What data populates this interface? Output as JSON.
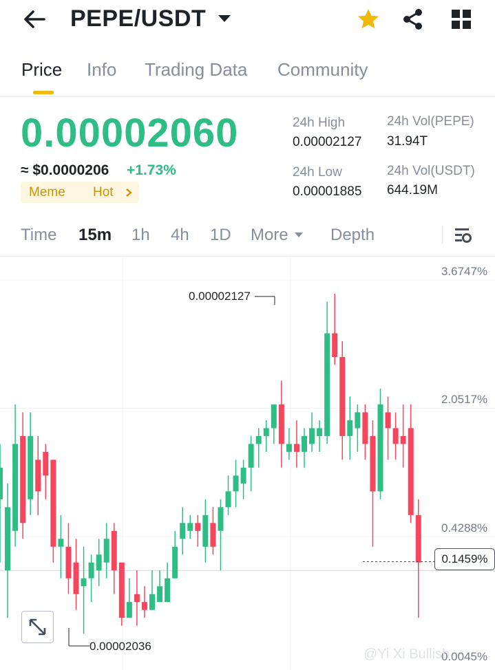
{
  "header": {
    "pair": "PEPE/USDT",
    "icons": [
      "back-arrow-icon",
      "dropdown-caret-icon",
      "star-icon",
      "share-icon",
      "grid-icon"
    ],
    "star_color": "#f0b90b"
  },
  "tabs": [
    {
      "label": "Price",
      "active": true
    },
    {
      "label": "Info",
      "active": false
    },
    {
      "label": "Trading Data",
      "active": false
    },
    {
      "label": "Community",
      "active": false
    }
  ],
  "price": {
    "last": "0.00002060",
    "usd": "≈ $0.0000206",
    "change": "+1.73%",
    "color_up": "#2ebd85",
    "color_down": "#f6465d"
  },
  "tags": [
    "Meme",
    "Hot"
  ],
  "stats": {
    "high_label": "24h High",
    "high": "0.00002127",
    "low_label": "24h Low",
    "low": "0.00001885",
    "vol_base_label": "24h Vol(PEPE)",
    "vol_base": "31.94T",
    "vol_quote_label": "24h Vol(USDT)",
    "vol_quote": "644.19M"
  },
  "timeframes": [
    {
      "label": "Time",
      "active": false
    },
    {
      "label": "15m",
      "active": true
    },
    {
      "label": "1h",
      "active": false
    },
    {
      "label": "4h",
      "active": false
    },
    {
      "label": "1D",
      "active": false
    },
    {
      "label": "More",
      "active": false
    },
    {
      "label": "Depth",
      "active": false
    }
  ],
  "chart": {
    "axis_labels": [
      "3.6747%",
      "2.0517%",
      "0.4288%"
    ],
    "current_label": "0.1459%",
    "cut_label": "0.0045%",
    "high_marker": "0.00002127",
    "low_marker": "0.00002036",
    "watermark": "@Yi Xi Bullish"
  },
  "chart_data": {
    "type": "candlestick",
    "timeframe": "15m",
    "y_axis_unit": "% change",
    "y_ticks": [
      3.6747,
      2.0517,
      0.4288
    ],
    "current_value": 0.1459,
    "marked_high": 2.127e-05,
    "marked_low": 2.036e-05,
    "candles": [
      {
        "o": 0.9,
        "c": 1.3,
        "h": 1.6,
        "l": 0.1
      },
      {
        "o": 0.0,
        "c": 0.8,
        "h": 1.1,
        "l": -0.6
      },
      {
        "o": 0.5,
        "c": 1.6,
        "h": 2.1,
        "l": 0.3
      },
      {
        "o": 1.7,
        "c": 0.6,
        "h": 2.0,
        "l": 0.4
      },
      {
        "o": 0.9,
        "c": 1.7,
        "h": 2.0,
        "l": 0.7
      },
      {
        "o": 1.4,
        "c": 1.0,
        "h": 1.7,
        "l": 0.7
      },
      {
        "o": 1.5,
        "c": 1.2,
        "h": 1.6,
        "l": 0.9
      },
      {
        "o": 1.4,
        "c": 0.3,
        "h": 1.4,
        "l": 0.1
      },
      {
        "o": 0.3,
        "c": 0.4,
        "h": 0.7,
        "l": -0.1
      },
      {
        "o": 0.3,
        "c": -0.1,
        "h": 0.6,
        "l": -0.3
      },
      {
        "o": 0.1,
        "c": -0.3,
        "h": 0.4,
        "l": -0.5
      },
      {
        "o": -0.2,
        "c": -0.1,
        "h": 0.3,
        "l": -0.8
      },
      {
        "o": -0.1,
        "c": 0.1,
        "h": 0.2,
        "l": -0.4
      },
      {
        "o": 0.0,
        "c": 0.2,
        "h": 0.4,
        "l": -0.2
      },
      {
        "o": 0.1,
        "c": 0.4,
        "h": 0.6,
        "l": -0.1
      },
      {
        "o": 0.5,
        "c": 0.0,
        "h": 0.6,
        "l": -0.3
      },
      {
        "o": 0.1,
        "c": -0.6,
        "h": 0.1,
        "l": -0.7
      },
      {
        "o": -0.6,
        "c": -0.4,
        "h": -0.1,
        "l": -0.6
      },
      {
        "o": -0.3,
        "c": -0.4,
        "h": 0.0,
        "l": -0.7
      },
      {
        "o": -0.4,
        "c": -0.5,
        "h": -0.2,
        "l": -0.6
      },
      {
        "o": -0.5,
        "c": -0.3,
        "h": 0.0,
        "l": -0.5
      },
      {
        "o": -0.4,
        "c": -0.2,
        "h": 0.0,
        "l": -0.4
      },
      {
        "o": -0.4,
        "c": -0.1,
        "h": 0.1,
        "l": -0.4
      },
      {
        "o": -0.1,
        "c": 0.3,
        "h": 0.5,
        "l": -0.1
      },
      {
        "o": 0.4,
        "c": 0.6,
        "h": 0.8,
        "l": 0.2
      },
      {
        "o": 0.5,
        "c": 0.6,
        "h": 0.7,
        "l": 0.4
      },
      {
        "o": 0.6,
        "c": 0.5,
        "h": 0.7,
        "l": 0.3
      },
      {
        "o": 0.3,
        "c": 0.7,
        "h": 0.9,
        "l": 0.1
      },
      {
        "o": 0.6,
        "c": 0.3,
        "h": 0.8,
        "l": 0.2
      },
      {
        "o": 0.5,
        "c": 0.8,
        "h": 0.9,
        "l": 0.0
      },
      {
        "o": 0.8,
        "c": 1.0,
        "h": 1.2,
        "l": 0.7
      },
      {
        "o": 1.0,
        "c": 1.2,
        "h": 1.4,
        "l": 0.8
      },
      {
        "o": 1.1,
        "c": 1.3,
        "h": 1.4,
        "l": 0.9
      },
      {
        "o": 1.3,
        "c": 1.6,
        "h": 1.7,
        "l": 1.0
      },
      {
        "o": 1.6,
        "c": 1.7,
        "h": 1.8,
        "l": 1.3
      },
      {
        "o": 1.7,
        "c": 1.8,
        "h": 1.9,
        "l": 1.5
      },
      {
        "o": 1.8,
        "c": 2.1,
        "h": 2.1,
        "l": 1.6
      },
      {
        "o": 2.1,
        "c": 1.6,
        "h": 2.4,
        "l": 1.3
      },
      {
        "o": 1.5,
        "c": 1.6,
        "h": 1.8,
        "l": 1.4
      },
      {
        "o": 1.6,
        "c": 1.5,
        "h": 1.9,
        "l": 1.3
      },
      {
        "o": 1.5,
        "c": 1.7,
        "h": 1.8,
        "l": 1.3
      },
      {
        "o": 1.6,
        "c": 1.8,
        "h": 2.0,
        "l": 1.5
      },
      {
        "o": 1.7,
        "c": 1.8,
        "h": 1.9,
        "l": 1.5
      },
      {
        "o": 1.7,
        "c": 3.0,
        "h": 3.4,
        "l": 1.6
      },
      {
        "o": 3.0,
        "c": 2.7,
        "h": 3.5,
        "l": 2.6
      },
      {
        "o": 2.7,
        "c": 1.7,
        "h": 2.9,
        "l": 1.4
      },
      {
        "o": 1.7,
        "c": 1.9,
        "h": 2.2,
        "l": 1.4
      },
      {
        "o": 1.8,
        "c": 2.0,
        "h": 2.1,
        "l": 1.5
      },
      {
        "o": 2.0,
        "c": 1.6,
        "h": 2.1,
        "l": 1.4
      },
      {
        "o": 1.7,
        "c": 1.0,
        "h": 1.9,
        "l": 0.3
      },
      {
        "o": 1.0,
        "c": 2.1,
        "h": 2.3,
        "l": 0.9
      },
      {
        "o": 2.0,
        "c": 1.8,
        "h": 2.2,
        "l": 1.4
      },
      {
        "o": 1.8,
        "c": 1.6,
        "h": 2.0,
        "l": 1.4
      },
      {
        "o": 1.7,
        "c": 1.6,
        "h": 2.1,
        "l": 1.3
      },
      {
        "o": 1.8,
        "c": 0.7,
        "h": 2.1,
        "l": 0.6
      },
      {
        "o": 0.7,
        "c": 0.1,
        "h": 0.9,
        "l": -0.6
      }
    ]
  }
}
